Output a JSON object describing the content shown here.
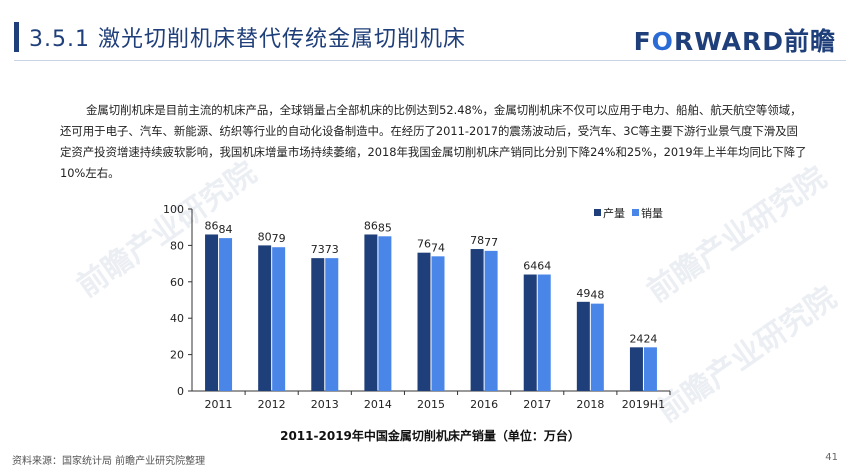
{
  "header": {
    "title": "3.5.1 激光切削机床替代传统金属切削机床",
    "logo_prefix": "F",
    "logo_o": "O",
    "logo_rest": "RWARD前瞻"
  },
  "body": {
    "paragraph": "金属切削机床是目前主流的机床产品，全球销量占全部机床的比例达到52.48%，金属切削机床不仅可以应用于电力、船舶、航天航空等领域，还可用于电子、汽车、新能源、纺织等行业的自动化设备制造中。在经历了2011-2017的震荡波动后，受汽车、3C等主要下游行业景气度下滑及固定资产投资增速持续疲软影响，我国机床增量市场持续萎缩，2018年我国金属切削机床产销同比分别下降24%和25%，2019年上半年均同比下降了10%左右。"
  },
  "watermark": "前瞻产业研究院",
  "chart_data": {
    "type": "bar",
    "title": "2011-2019年中国金属切削机床产销量（单位：万台）",
    "categories": [
      "2011",
      "2012",
      "2013",
      "2014",
      "2015",
      "2016",
      "2017",
      "2018",
      "2019H1"
    ],
    "series": [
      {
        "name": "产量",
        "color": "#1f3f7a",
        "values": [
          86,
          80,
          73,
          86,
          76,
          78,
          64,
          49,
          24
        ]
      },
      {
        "name": "销量",
        "color": "#4a86e8",
        "values": [
          84,
          79,
          73,
          85,
          74,
          77,
          64,
          48,
          24
        ]
      }
    ],
    "yticks": [
      0,
      20,
      40,
      60,
      80,
      100
    ],
    "ylim": [
      0,
      100
    ],
    "legend_position": "top-right",
    "grid": false
  },
  "footer": {
    "source": "资料来源：国家统计局 前瞻产业研究院整理",
    "page_number": "41"
  }
}
